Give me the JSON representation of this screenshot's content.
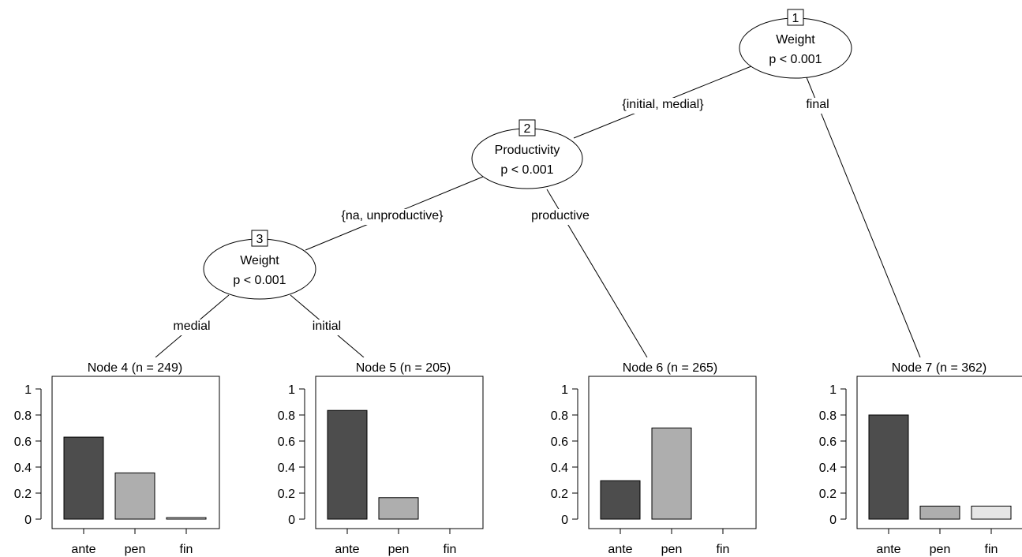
{
  "chart_data": {
    "type": "bar",
    "title": "",
    "categories": [
      "ante",
      "pen",
      "fin"
    ],
    "colors": [
      "#4d4d4d",
      "#aeaeae",
      "#e6e6e6"
    ],
    "ylim": [
      0,
      1
    ],
    "y_ticks": [
      "0",
      "0.2",
      "0.4",
      "0.6",
      "0.8",
      "1"
    ],
    "inner_nodes": [
      {
        "id": "1",
        "variable": "Weight",
        "p": "p < 0.001"
      },
      {
        "id": "2",
        "variable": "Productivity",
        "p": "p < 0.001"
      },
      {
        "id": "3",
        "variable": "Weight",
        "p": "p < 0.001"
      }
    ],
    "edges": [
      {
        "from": "1",
        "to": "2",
        "label": "{initial, medial}"
      },
      {
        "from": "1",
        "to": "7",
        "label": "final"
      },
      {
        "from": "2",
        "to": "3",
        "label": "{na, unproductive}"
      },
      {
        "from": "2",
        "to": "6",
        "label": "productive"
      },
      {
        "from": "3",
        "to": "4",
        "label": "medial"
      },
      {
        "from": "3",
        "to": "5",
        "label": "initial"
      }
    ],
    "terminal_nodes": [
      {
        "id": "4",
        "title": "Node 4 (n = 249)",
        "values": [
          0.63,
          0.355,
          0.012
        ]
      },
      {
        "id": "5",
        "title": "Node 5 (n = 205)",
        "values": [
          0.835,
          0.165,
          0.0
        ]
      },
      {
        "id": "6",
        "title": "Node 6 (n = 265)",
        "values": [
          0.295,
          0.7,
          0.0
        ]
      },
      {
        "id": "7",
        "title": "Node 7 (n = 362)",
        "values": [
          0.8,
          0.1,
          0.1
        ]
      }
    ]
  }
}
